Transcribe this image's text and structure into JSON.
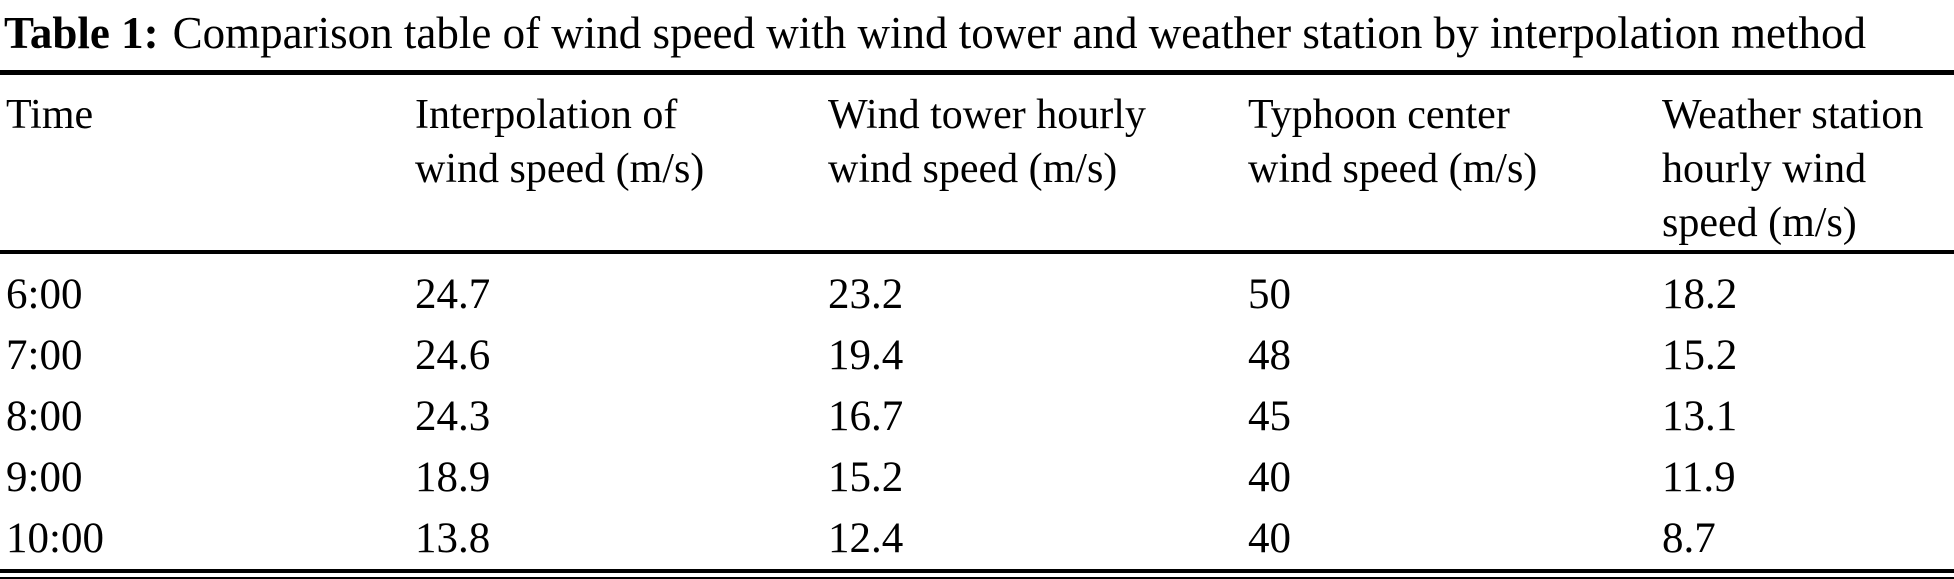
{
  "caption": {
    "label": "Table 1:",
    "text": "Comparison table of wind speed with wind tower and weather station by interpolation method"
  },
  "table": {
    "headers": [
      "Time",
      "Interpolation of\nwind speed (m/s)",
      "Wind tower hourly\nwind speed (m/s)",
      "Typhoon center\nwind speed (m/s)",
      "Weather station\nhourly wind\nspeed (m/s)"
    ],
    "rows": [
      [
        "6:00",
        "24.7",
        "23.2",
        "50",
        "18.2"
      ],
      [
        "7:00",
        "24.6",
        "19.4",
        "48",
        "15.2"
      ],
      [
        "8:00",
        "24.3",
        "16.7",
        "45",
        "13.1"
      ],
      [
        "9:00",
        "18.9",
        "15.2",
        "40",
        "11.9"
      ],
      [
        "10:00",
        "13.8",
        "12.4",
        "40",
        "8.7"
      ]
    ]
  },
  "colors": {
    "text": "#000000",
    "rule": "#000000",
    "background": "#ffffff"
  }
}
